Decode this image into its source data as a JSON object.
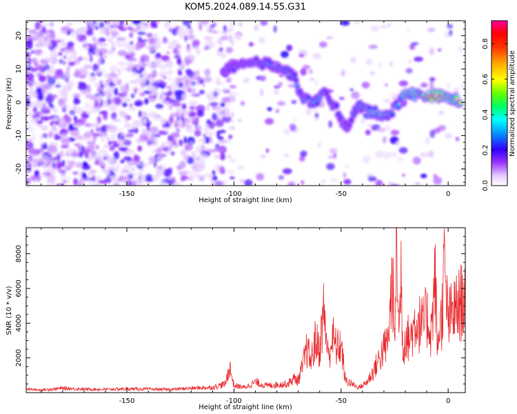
{
  "title": "KOM5.2024.089.14.55.G31",
  "chart_data": [
    {
      "type": "heatmap",
      "xlabel": "Height of straight line (km)",
      "ylabel": "Frequency (Hz)",
      "xlim": [
        -197,
        8
      ],
      "ylim": [
        -25,
        24.5
      ],
      "xticks": [
        -150,
        -100,
        -50,
        0
      ],
      "yticks": [
        -20,
        -10,
        0,
        10,
        20
      ],
      "colorbar": {
        "label": "Normalized spectral amplitude",
        "range": [
          0,
          0.93
        ],
        "ticks": [
          0.0,
          0.2,
          0.4,
          0.6,
          0.8
        ],
        "colormap": "rainbow-white-to-magenta"
      },
      "ridge": {
        "name": "",
        "points": [
          {
            "x": -105,
            "y": 10,
            "amp": 0.25
          },
          {
            "x": -88,
            "y": 12,
            "amp": 0.35
          },
          {
            "x": -80,
            "y": 11,
            "amp": 0.4
          },
          {
            "x": -72,
            "y": 8,
            "amp": 0.3
          },
          {
            "x": -68,
            "y": 1,
            "amp": 0.35
          },
          {
            "x": -62,
            "y": 0,
            "amp": 0.4
          },
          {
            "x": -58,
            "y": 3,
            "amp": 0.35
          },
          {
            "x": -52,
            "y": -2,
            "amp": 0.3
          },
          {
            "x": -48,
            "y": -8,
            "amp": 0.25
          },
          {
            "x": -42,
            "y": -1,
            "amp": 0.35
          },
          {
            "x": -35,
            "y": -3,
            "amp": 0.45
          },
          {
            "x": -28,
            "y": -4,
            "amp": 0.45
          },
          {
            "x": -24,
            "y": -1,
            "amp": 0.35
          },
          {
            "x": -20,
            "y": 3,
            "amp": 0.5
          },
          {
            "x": -12,
            "y": 2,
            "amp": 0.6
          },
          {
            "x": -5,
            "y": 2,
            "amp": 0.85
          },
          {
            "x": 2,
            "y": 1,
            "amp": 0.5
          },
          {
            "x": 6,
            "y": 0,
            "amp": 0.9
          }
        ]
      }
    },
    {
      "type": "line",
      "xlabel": "Height of straight line (km)",
      "ylabel": "SNR (10 * v/v)",
      "xlim": [
        -197,
        8
      ],
      "ylim": [
        0,
        9500
      ],
      "xticks": [
        -150,
        -100,
        -50,
        0
      ],
      "yticks": [
        2000,
        4000,
        6000,
        8000
      ],
      "series": [
        {
          "name": "",
          "color": "#e8262a",
          "x": [
            -197,
            -190,
            -180,
            -170,
            -160,
            -150,
            -140,
            -130,
            -120,
            -110,
            -104,
            -102,
            -100,
            -95,
            -90,
            -85,
            -80,
            -75,
            -72,
            -70,
            -68,
            -66,
            -64,
            -62,
            -60,
            -58,
            -56,
            -54,
            -52,
            -50,
            -48,
            -45,
            -42,
            -40,
            -38,
            -35,
            -32,
            -30,
            -28,
            -26,
            -25,
            -24,
            -23,
            -22,
            -21,
            -20,
            -18,
            -15,
            -12,
            -10,
            -8,
            -6,
            -5,
            -4,
            -3,
            -2,
            0,
            2,
            4,
            6,
            8
          ],
          "y": [
            200,
            150,
            250,
            200,
            180,
            220,
            200,
            180,
            250,
            300,
            500,
            1500,
            400,
            300,
            600,
            400,
            450,
            500,
            800,
            700,
            1500,
            2500,
            1800,
            3000,
            2500,
            4800,
            2000,
            3200,
            2500,
            2800,
            700,
            500,
            300,
            400,
            600,
            1200,
            2000,
            2500,
            3000,
            6800,
            2500,
            9500,
            3000,
            7000,
            2000,
            3500,
            3000,
            4200,
            3800,
            4400,
            3500,
            6600,
            2300,
            4000,
            4200,
            7200,
            4100,
            4600,
            4800,
            5200,
            5600
          ]
        }
      ]
    }
  ]
}
